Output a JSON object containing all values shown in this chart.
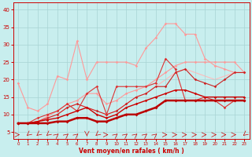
{
  "background_color": "#c8eeee",
  "grid_color": "#a8d4d4",
  "xlabel": "Vent moyen/en rafales ( km/h )",
  "xlabel_color": "#cc0000",
  "tick_color": "#cc0000",
  "ylim": [
    3,
    42
  ],
  "xlim": [
    -0.5,
    23.5
  ],
  "yticks": [
    5,
    10,
    15,
    20,
    25,
    30,
    35,
    40
  ],
  "xticks": [
    0,
    1,
    2,
    3,
    4,
    5,
    6,
    7,
    8,
    9,
    10,
    11,
    12,
    13,
    14,
    15,
    16,
    17,
    18,
    19,
    20,
    21,
    22,
    23
  ],
  "series": [
    {
      "x": [
        0,
        1,
        2,
        3,
        4,
        5,
        6,
        7,
        8,
        9,
        10,
        11,
        12,
        13,
        14,
        15,
        16,
        17,
        18,
        19,
        20,
        21,
        22,
        23
      ],
      "y": [
        7.5,
        7.5,
        7.5,
        7.5,
        8,
        8,
        9,
        9,
        8,
        8,
        9,
        10,
        10,
        11,
        12,
        14,
        14,
        14,
        14,
        14,
        14,
        14,
        14,
        14
      ],
      "color": "#bb0000",
      "lw": 1.8,
      "marker": "D",
      "ms": 2.0,
      "zorder": 5
    },
    {
      "x": [
        0,
        1,
        2,
        3,
        4,
        5,
        6,
        7,
        8,
        9,
        10,
        11,
        12,
        13,
        14,
        15,
        16,
        17,
        18,
        19,
        20,
        21,
        22,
        23
      ],
      "y": [
        7.5,
        7.5,
        8,
        8.5,
        9,
        10,
        11,
        12,
        10,
        9,
        10,
        12,
        13,
        14,
        15,
        16,
        17,
        17,
        16,
        15,
        15,
        15,
        15,
        15
      ],
      "color": "#cc0000",
      "lw": 1.0,
      "marker": "D",
      "ms": 1.8,
      "zorder": 4
    },
    {
      "x": [
        0,
        1,
        2,
        3,
        4,
        5,
        6,
        7,
        8,
        9,
        10,
        11,
        12,
        13,
        14,
        15,
        16,
        17,
        18,
        19,
        20,
        21,
        22,
        23
      ],
      "y": [
        7.5,
        7.5,
        8,
        9,
        10,
        12,
        13,
        12,
        11,
        10,
        11,
        13,
        15,
        16,
        18,
        18,
        22,
        23,
        20,
        19,
        18,
        20,
        22,
        22
      ],
      "color": "#cc2222",
      "lw": 0.8,
      "marker": "D",
      "ms": 1.8,
      "zorder": 3
    },
    {
      "x": [
        0,
        1,
        2,
        3,
        4,
        5,
        6,
        7,
        8,
        9,
        10,
        11,
        12,
        13,
        14,
        15,
        16,
        17,
        18,
        19,
        20,
        21,
        22,
        23
      ],
      "y": [
        7.5,
        7.5,
        9,
        10,
        11,
        13,
        11,
        16,
        18,
        10,
        18,
        18,
        18,
        18,
        19,
        26,
        23,
        14,
        14,
        15,
        14,
        12,
        14,
        14
      ],
      "color": "#dd3333",
      "lw": 0.8,
      "marker": "D",
      "ms": 1.8,
      "zorder": 3
    },
    {
      "x": [
        0,
        1,
        2,
        3,
        4,
        5,
        6,
        7,
        8,
        9,
        10,
        11,
        12,
        13,
        14,
        15,
        16,
        17,
        18,
        19,
        20,
        21,
        22,
        23
      ],
      "y": [
        19,
        12,
        11,
        13,
        21,
        20,
        31,
        20,
        25,
        25,
        25,
        25,
        24,
        29,
        32,
        36,
        36,
        33,
        33,
        26,
        24,
        23,
        22,
        22
      ],
      "color": "#ff9999",
      "lw": 0.8,
      "marker": "D",
      "ms": 1.8,
      "zorder": 2
    },
    {
      "x": [
        0,
        1,
        2,
        3,
        4,
        5,
        6,
        7,
        8,
        9,
        10,
        11,
        12,
        13,
        14,
        15,
        16,
        17,
        18,
        19,
        20,
        21,
        22,
        23
      ],
      "y": [
        7.5,
        7.5,
        8,
        9.5,
        11,
        13,
        14,
        16,
        16,
        13,
        14,
        16,
        17,
        18,
        20,
        22,
        24,
        25,
        25,
        25,
        25,
        25,
        25,
        22
      ],
      "color": "#ff9999",
      "lw": 0.8,
      "marker": "D",
      "ms": 1.8,
      "zorder": 2
    },
    {
      "x": [
        0,
        1,
        2,
        3,
        4,
        5,
        6,
        7,
        8,
        9,
        10,
        11,
        12,
        13,
        14,
        15,
        16,
        17,
        18,
        19,
        20,
        21,
        22,
        23
      ],
      "y": [
        7.5,
        7.5,
        8,
        9,
        10,
        12,
        13,
        12,
        11,
        10,
        11,
        13,
        15,
        16,
        18,
        20,
        22,
        23,
        22,
        21,
        20,
        21,
        22,
        22
      ],
      "color": "#ffbbbb",
      "lw": 0.8,
      "marker": null,
      "ms": 0,
      "zorder": 1
    }
  ],
  "arrow_directions": [
    0,
    225,
    225,
    225,
    45,
    45,
    45,
    270,
    225,
    0,
    45,
    45,
    45,
    45,
    45,
    0,
    0,
    0,
    0,
    0,
    0,
    0,
    0,
    225
  ],
  "wind_arrows_color": "#cc0000"
}
